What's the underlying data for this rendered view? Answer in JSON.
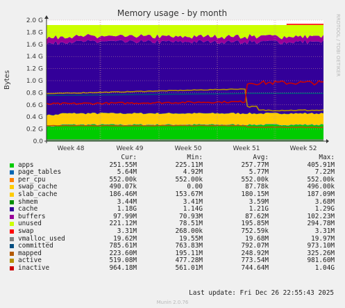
{
  "chart_data": {
    "type": "area",
    "title": "Memory usage - by month",
    "ylabel": "Bytes",
    "side_label": "RRDTOOL / TOBI OETIKER",
    "ylim": [
      0,
      2000000000
    ],
    "y_ticks": [
      "0.0",
      "0.2 G",
      "0.4 G",
      "0.6 G",
      "0.8 G",
      "1.0 G",
      "1.2 G",
      "1.4 G",
      "1.6 G",
      "1.8 G",
      "2.0 G"
    ],
    "categories": [
      "Week 48",
      "Week 49",
      "Week 50",
      "Week 51",
      "Week 52"
    ],
    "grid": true,
    "legend_position": "bottom",
    "columns": [
      "Cur:",
      "Min:",
      "Avg:",
      "Max:"
    ],
    "series": [
      {
        "name": "apps",
        "color": "#00cc00",
        "cur": "251.55M",
        "min": "225.11M",
        "avg": "257.77M",
        "max": "405.91M"
      },
      {
        "name": "page_tables",
        "color": "#0066b3",
        "cur": "5.64M",
        "min": "4.92M",
        "avg": "5.77M",
        "max": "7.22M"
      },
      {
        "name": "per_cpu",
        "color": "#ff8000",
        "cur": "552.00k",
        "min": "552.00k",
        "avg": "552.00k",
        "max": "552.00k"
      },
      {
        "name": "swap_cache",
        "color": "#ffcc00",
        "cur": "490.07k",
        "min": "0.00",
        "avg": "87.78k",
        "max": "496.00k"
      },
      {
        "name": "slab_cache",
        "color": "#ffcc00",
        "cur": "186.46M",
        "min": "153.67M",
        "avg": "180.15M",
        "max": "187.09M"
      },
      {
        "name": "shmem",
        "color": "#008f00",
        "cur": "3.44M",
        "min": "3.41M",
        "avg": "3.59M",
        "max": "3.68M"
      },
      {
        "name": "cache",
        "color": "#330099",
        "cur": "1.18G",
        "min": "1.14G",
        "avg": "1.21G",
        "max": "1.29G"
      },
      {
        "name": "buffers",
        "color": "#990099",
        "cur": "97.99M",
        "min": "70.93M",
        "avg": "87.62M",
        "max": "102.23M"
      },
      {
        "name": "unused",
        "color": "#ccff00",
        "cur": "221.12M",
        "min": "78.51M",
        "avg": "195.85M",
        "max": "294.78M"
      },
      {
        "name": "swap",
        "color": "#ff0000",
        "cur": "3.31M",
        "min": "268.00k",
        "avg": "752.59k",
        "max": "3.31M"
      },
      {
        "name": "vmalloc_used",
        "color": "#808080",
        "cur": "19.62M",
        "min": "19.55M",
        "avg": "19.68M",
        "max": "19.97M"
      },
      {
        "name": "committed",
        "color": "#004d80",
        "cur": "785.61M",
        "min": "763.83M",
        "avg": "792.07M",
        "max": "973.10M"
      },
      {
        "name": "mapped",
        "color": "#b35a00",
        "cur": "223.60M",
        "min": "195.11M",
        "avg": "248.92M",
        "max": "325.26M"
      },
      {
        "name": "active",
        "color": "#b38f00",
        "cur": "519.08M",
        "min": "477.28M",
        "avg": "773.54M",
        "max": "981.60M"
      },
      {
        "name": "inactive",
        "color": "#cc0000",
        "cur": "964.18M",
        "min": "561.01M",
        "avg": "744.64M",
        "max": "1.04G"
      }
    ]
  },
  "footer": {
    "last_update": "Last update: Fri Dec 26 22:55:43 2025",
    "version": "Munin 2.0.76"
  }
}
